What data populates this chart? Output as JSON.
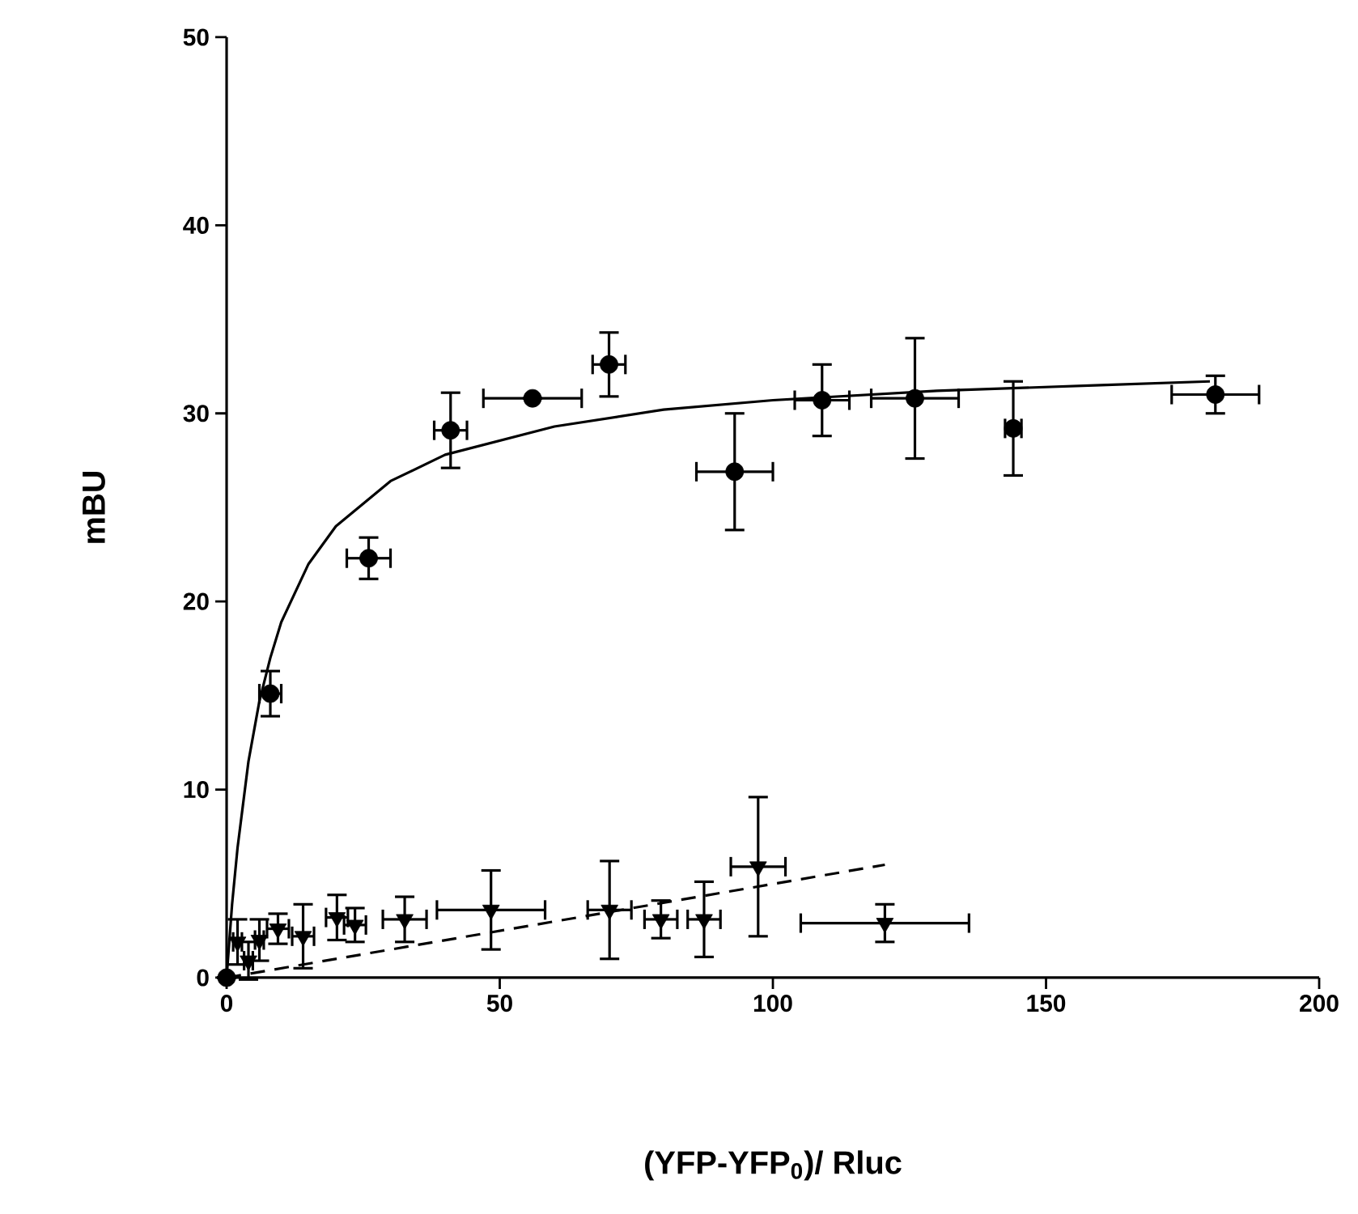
{
  "chart_data": {
    "type": "scatter",
    "xlabel": "(YFP-YFP$_{0}$)/ Rluc",
    "ylabel": "mBU",
    "xlim": [
      0,
      200
    ],
    "ylim": [
      0,
      50
    ],
    "xticks": [
      0,
      50,
      100,
      150,
      200
    ],
    "yticks": [
      0,
      10,
      20,
      30,
      40,
      50
    ],
    "grid": false,
    "series": [
      {
        "marker": "circle",
        "color": "#000000",
        "x": [
          0,
          8,
          26,
          41,
          56,
          70,
          93,
          109,
          126,
          144,
          181
        ],
        "values": [
          0,
          15.1,
          22.3,
          29.1,
          30.8,
          32.6,
          26.9,
          30.7,
          30.8,
          29.2,
          31.0
        ],
        "errors": [
          null,
          1.2,
          1.1,
          2,
          null,
          1.7,
          3.1,
          1.9,
          3.2,
          2.5,
          1
        ],
        "xerrors": [
          null,
          2,
          4,
          3,
          9,
          3,
          7,
          5,
          8,
          1.5,
          8
        ]
      },
      {
        "type": "line",
        "marker": "none",
        "line_style": "solid",
        "color": "#000000",
        "x": [
          0,
          1,
          2,
          4,
          6,
          8,
          10,
          15,
          20,
          30,
          40,
          60,
          80,
          100,
          130,
          160,
          180
        ],
        "values": [
          0,
          3.9,
          6.9,
          11.5,
          14.7,
          17.0,
          18.9,
          22.0,
          24.0,
          26.4,
          27.8,
          29.3,
          30.2,
          30.7,
          31.2,
          31.5,
          31.7
        ]
      },
      {
        "marker": "triangle",
        "color": "#000000",
        "x": [
          2,
          4,
          6,
          9.4,
          14,
          20.2,
          23.5,
          32.6,
          48.4,
          70.1,
          79.5,
          87.4,
          97.3,
          120.5
        ],
        "values": [
          1.9,
          0.9,
          2.0,
          2.6,
          2.2,
          3.2,
          2.8,
          3.1,
          3.6,
          3.6,
          3.1,
          3.1,
          5.9,
          2.9
        ],
        "errors": [
          1.2,
          1,
          1.1,
          0.8,
          1.7,
          1.2,
          0.9,
          1.2,
          2.1,
          2.6,
          1,
          2,
          3.7,
          1
        ],
        "xerrors": [
          0.8,
          0.8,
          0.8,
          2,
          2,
          2,
          2,
          4,
          9.9,
          4,
          3,
          3,
          5,
          15.4
        ]
      },
      {
        "type": "line",
        "marker": "none",
        "line_style": "dashed",
        "color": "#000000",
        "x": [
          0,
          120.5
        ],
        "values": [
          0,
          6.0
        ]
      }
    ]
  }
}
